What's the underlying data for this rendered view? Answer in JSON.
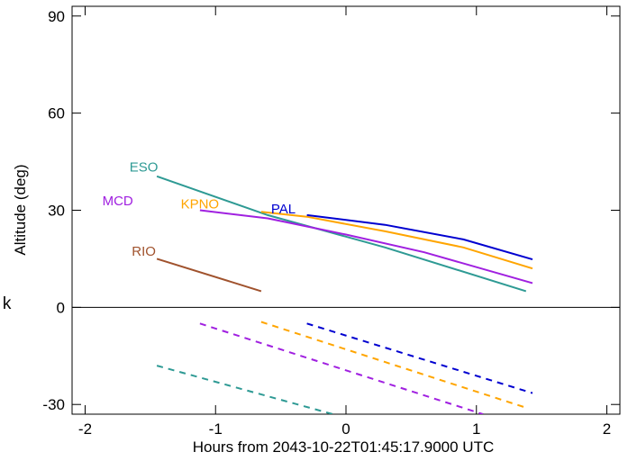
{
  "chart_data": {
    "type": "line",
    "title": "",
    "xlabel": "Hours from 2043-10-22T01:45:17.9000 UTC",
    "ylabel": "Altitude (deg)",
    "xlim": [
      -2.1,
      2.1
    ],
    "ylim": [
      -33,
      93
    ],
    "x_ticks": [
      -2,
      -1,
      0,
      1,
      2
    ],
    "x_tick_labels": [
      "-2",
      "-1",
      "0",
      "1",
      "2"
    ],
    "y_ticks": [
      -30,
      0,
      30,
      60,
      90
    ],
    "y_tick_labels": [
      "-30",
      "0",
      "30",
      "60",
      "90"
    ],
    "horizon_line": 0,
    "side_glyph": "k",
    "series": [
      {
        "name": "ESO",
        "color": "#2e9a94",
        "label_at": [
          -1.55,
          42
        ],
        "segments": [
          {
            "style": "solid",
            "points": [
              [
                -1.45,
                40.5
              ],
              [
                -0.6,
                28.5
              ],
              [
                0.3,
                18.5
              ],
              [
                1.38,
                5.0
              ]
            ]
          },
          {
            "style": "dashed",
            "points": [
              [
                -1.45,
                -18.0
              ],
              [
                -0.1,
                -33.0
              ]
            ]
          }
        ]
      },
      {
        "name": "MCD",
        "color": "#a020e0",
        "label_at": [
          -1.75,
          31.5
        ],
        "segments": [
          {
            "style": "solid",
            "points": [
              [
                -1.12,
                30.0
              ],
              [
                -0.6,
                27.5
              ],
              [
                0.0,
                22.5
              ],
              [
                0.6,
                17.0
              ],
              [
                1.43,
                7.5
              ]
            ]
          },
          {
            "style": "dashed",
            "points": [
              [
                -1.12,
                -5.0
              ],
              [
                1.05,
                -33.0
              ]
            ]
          }
        ]
      },
      {
        "name": "KPNO",
        "color": "#ffa500",
        "label_at": [
          -1.12,
          30.5
        ],
        "segments": [
          {
            "style": "solid",
            "points": [
              [
                -0.65,
                29.5
              ],
              [
                -0.3,
                28.0
              ],
              [
                0.3,
                23.5
              ],
              [
                0.9,
                18.5
              ],
              [
                1.43,
                12.0
              ]
            ]
          },
          {
            "style": "dashed",
            "points": [
              [
                -0.65,
                -4.5
              ],
              [
                1.38,
                -31.0
              ]
            ]
          }
        ]
      },
      {
        "name": "PAL",
        "color": "#0000d0",
        "label_at": [
          -0.48,
          29.0
        ],
        "segments": [
          {
            "style": "solid",
            "points": [
              [
                -0.3,
                28.5
              ],
              [
                0.3,
                25.5
              ],
              [
                0.9,
                21.0
              ],
              [
                1.43,
                14.8
              ]
            ]
          },
          {
            "style": "dashed",
            "points": [
              [
                -0.3,
                -5.0
              ],
              [
                1.43,
                -26.5
              ]
            ]
          }
        ]
      },
      {
        "name": "RIO",
        "color": "#a0522d",
        "label_at": [
          -1.55,
          16.0
        ],
        "segments": [
          {
            "style": "solid",
            "points": [
              [
                -1.45,
                15.0
              ],
              [
                -0.65,
                5.0
              ]
            ]
          }
        ]
      }
    ]
  }
}
